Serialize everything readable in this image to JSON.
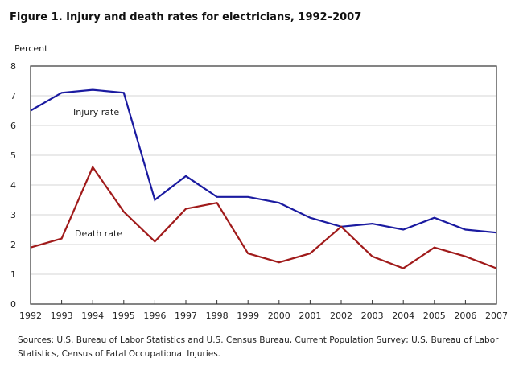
{
  "chart_data": {
    "type": "line",
    "title": "Figure 1. Injury and death rates for electricians, 1992–2007",
    "ylabel": "Percent",
    "xlabel": "",
    "ylim": [
      0,
      8
    ],
    "yticks": [
      0,
      1,
      2,
      3,
      4,
      5,
      6,
      7,
      8
    ],
    "x": [
      1992,
      1993,
      1994,
      1995,
      1996,
      1997,
      1998,
      1999,
      2000,
      2001,
      2002,
      2003,
      2004,
      2005,
      2006,
      2007
    ],
    "grid": true,
    "series": [
      {
        "name": "Injury rate",
        "color": "#1a1aa0",
        "values": [
          6.5,
          7.1,
          7.2,
          7.1,
          3.5,
          4.3,
          3.6,
          3.6,
          3.4,
          2.9,
          2.6,
          2.7,
          2.5,
          2.9,
          2.5,
          2.4
        ]
      },
      {
        "name": "Death rate",
        "color": "#a01a1a",
        "values": [
          1.9,
          2.2,
          4.6,
          3.1,
          2.1,
          3.2,
          3.4,
          1.7,
          1.4,
          1.7,
          2.6,
          1.6,
          1.2,
          1.9,
          1.6,
          1.2
        ]
      }
    ],
    "source": "Sources: U.S. Bureau of Labor Statistics and U.S. Census Bureau, Current Population Survey; U.S. Bureau of Labor Statistics, Census of Fatal Occupational Injuries."
  }
}
